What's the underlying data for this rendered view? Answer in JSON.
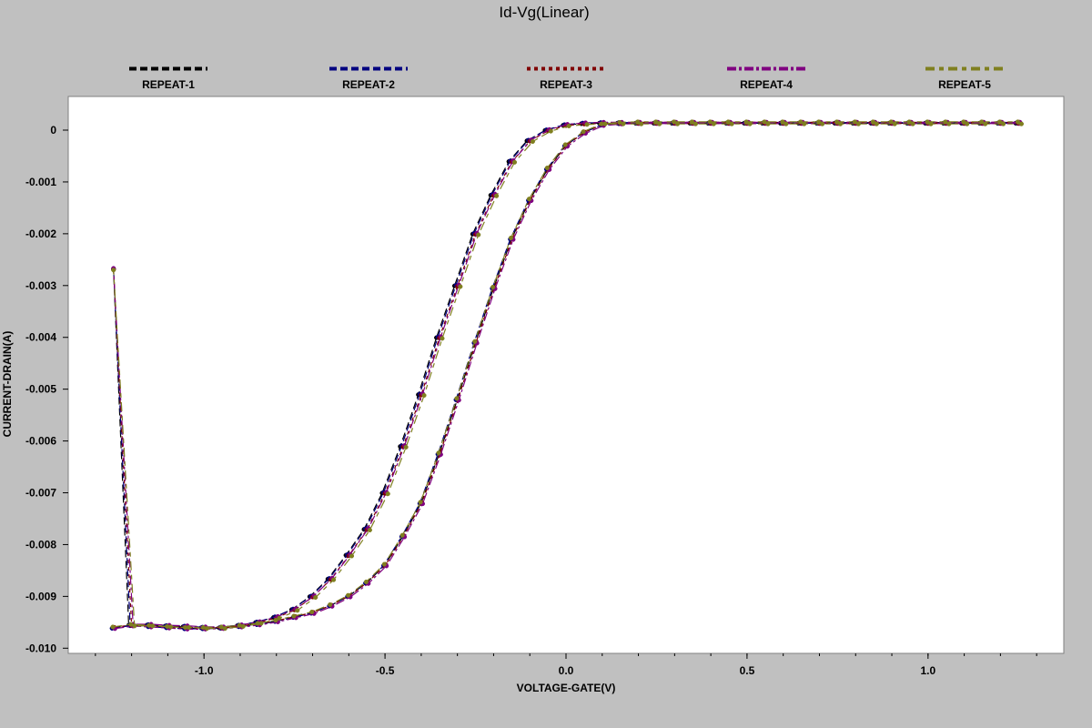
{
  "chart_data": {
    "type": "line",
    "title": "Id-Vg(Linear)",
    "xlabel": "VOLTAGE-GATE(V)",
    "ylabel": "CURRENT-DRAIN(A)",
    "xlim": [
      -1.375,
      1.375
    ],
    "ylim": [
      -0.0101,
      0.00065
    ],
    "xticks": [
      -1.0,
      -0.5,
      0.0,
      0.5,
      1.0
    ],
    "xtick_labels": [
      "-1.0",
      "-0.5",
      "0.0",
      "0.5",
      "1.0"
    ],
    "yticks": [
      0,
      -0.001,
      -0.002,
      -0.003,
      -0.004,
      -0.005,
      -0.006,
      -0.007,
      -0.008,
      -0.009,
      -0.01
    ],
    "ytick_labels": [
      "0",
      "-0.001",
      "-0.002",
      "-0.003",
      "-0.004",
      "-0.005",
      "-0.006",
      "-0.007",
      "-0.008",
      "-0.009",
      "-0.010"
    ],
    "grid": false,
    "legend_position": "top",
    "x": [
      -1.25,
      -1.2,
      -1.15,
      -1.1,
      -1.05,
      -1.0,
      -0.95,
      -0.9,
      -0.85,
      -0.8,
      -0.75,
      -0.7,
      -0.65,
      -0.6,
      -0.55,
      -0.5,
      -0.45,
      -0.4,
      -0.35,
      -0.3,
      -0.25,
      -0.2,
      -0.15,
      -0.1,
      -0.05,
      0.0,
      0.05,
      0.1,
      0.15,
      0.2,
      0.25,
      0.3,
      0.35,
      0.4,
      0.45,
      0.5,
      0.55,
      0.6,
      0.65,
      0.7,
      0.75,
      0.8,
      0.85,
      0.9,
      0.95,
      1.0,
      1.05,
      1.1,
      1.15,
      1.2,
      1.25
    ],
    "sweep_forward_y": [
      -0.00961,
      -0.00956,
      -0.00958,
      -0.0096,
      -0.00962,
      -0.00962,
      -0.00961,
      -0.00958,
      -0.00954,
      -0.00948,
      -0.0094,
      -0.00932,
      -0.00918,
      -0.009,
      -0.00874,
      -0.0084,
      -0.00784,
      -0.0072,
      -0.00625,
      -0.0052,
      -0.0041,
      -0.00305,
      -0.0021,
      -0.00135,
      -0.00075,
      -0.0003,
      -5e-05,
      0.0001,
      0.00013,
      0.00014,
      0.00014,
      0.00014,
      0.00014,
      0.00014,
      0.00014,
      0.00014,
      0.00014,
      0.00014,
      0.00014,
      0.00014,
      0.00014,
      0.00014,
      0.00014,
      0.00014,
      0.00014,
      0.00014,
      0.00014,
      0.00014,
      0.00014,
      0.00014,
      0.00014
    ],
    "sweep_reverse_y": [
      -0.00268,
      -0.00955,
      -0.00955,
      -0.00957,
      -0.00958,
      -0.0096,
      -0.0096,
      -0.00956,
      -0.0095,
      -0.0094,
      -0.00925,
      -0.009,
      -0.00866,
      -0.0082,
      -0.0077,
      -0.007,
      -0.0061,
      -0.0051,
      -0.004,
      -0.003,
      -0.002,
      -0.00125,
      -0.0006,
      -0.0002,
      0.0,
      0.0001,
      0.00013,
      0.00014,
      0.00014,
      0.00014,
      0.00014,
      0.00014,
      0.00014,
      0.00014,
      0.00014,
      0.00014,
      0.00014,
      0.00014,
      0.00014,
      0.00014,
      0.00014,
      0.00014,
      0.00014,
      0.00014,
      0.00014,
      0.00014,
      0.00014,
      0.00014,
      0.00014,
      0.00014,
      0.00014
    ],
    "series": [
      {
        "name": "REPEAT-1",
        "color": "#000000",
        "dash": "8,4",
        "fwd_offset": 0.0,
        "rev_shift": -0.008,
        "y_jitter": 6e-06
      },
      {
        "name": "REPEAT-2",
        "color": "#00007f",
        "dash": "8,4",
        "fwd_offset": -0.004,
        "rev_shift": -0.004,
        "y_jitter": -6e-06
      },
      {
        "name": "REPEAT-3",
        "color": "#7f0000",
        "dash": "4,4",
        "fwd_offset": 0.002,
        "rev_shift": 0.0,
        "y_jitter": 1.2e-05
      },
      {
        "name": "REPEAT-4",
        "color": "#7f007f",
        "dash": "10,3,3,3",
        "fwd_offset": 0.004,
        "rev_shift": 0.004,
        "y_jitter": -1.2e-05
      },
      {
        "name": "REPEAT-5",
        "color": "#7f7f1f",
        "dash": "10,5,5,5",
        "fwd_offset": -0.002,
        "rev_shift": 0.008,
        "y_jitter": 2e-05
      }
    ]
  }
}
